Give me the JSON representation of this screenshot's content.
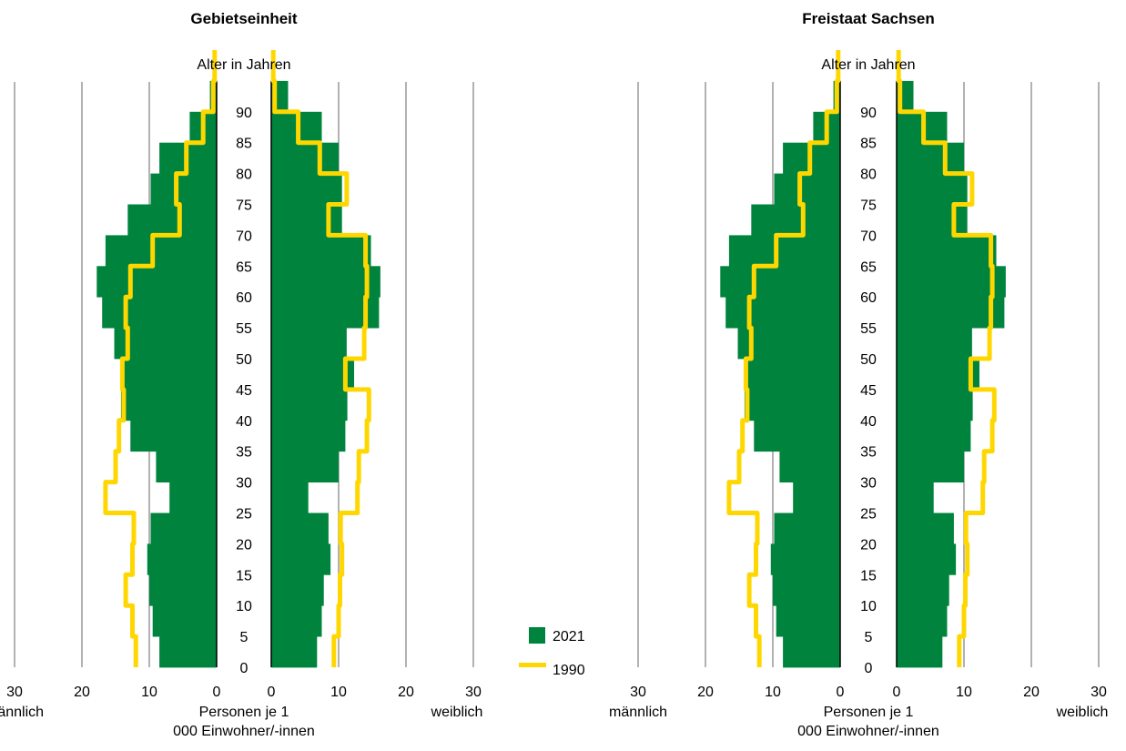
{
  "colors": {
    "bar_2021": "#00843d",
    "line_1990": "#ffd700",
    "grid": "#999999",
    "axis": "#000000"
  },
  "legend": {
    "items": [
      "2021",
      "1990"
    ]
  },
  "chart_data": [
    {
      "type": "population-pyramid",
      "title": "Gebietseinheit",
      "y_label": "Alter in Jahren",
      "x_label": "Personen je 1 000 Einwohner/-innen",
      "left_label": "männlich",
      "right_label": "weiblich",
      "x_ticks_left": [
        "30",
        "20",
        "10",
        "0"
      ],
      "x_ticks_right": [
        "0",
        "10",
        "20",
        "30"
      ],
      "y_ticks": [
        "0",
        "5",
        "10",
        "15",
        "20",
        "25",
        "30",
        "35",
        "40",
        "45",
        "50",
        "55",
        "60",
        "65",
        "70",
        "75",
        "80",
        "85",
        "90"
      ],
      "xlim": [
        0,
        30
      ],
      "age_groups": [
        "0",
        "5",
        "10",
        "15",
        "20",
        "25",
        "30",
        "35",
        "40",
        "45",
        "50",
        "55",
        "60",
        "65",
        "70",
        "75",
        "80",
        "85",
        "90",
        "95"
      ],
      "series": [
        {
          "name": "2021",
          "male": [
            8.5,
            9.5,
            10,
            10.3,
            9.8,
            7,
            9,
            12.8,
            14.2,
            13.8,
            15.2,
            17,
            17.8,
            16.5,
            13.2,
            9.8,
            8.5,
            4,
            1,
            0.5
          ],
          "female": [
            6.8,
            7.5,
            7.8,
            8.8,
            8.5,
            5.5,
            10,
            11,
            11.3,
            12.3,
            11.2,
            16,
            16.2,
            14.8,
            10.5,
            10.5,
            10,
            7.5,
            2.5,
            0.5
          ]
        },
        {
          "name": "1990",
          "male": [
            12,
            12.5,
            13.5,
            12.5,
            12.3,
            16.5,
            15,
            14.5,
            13.8,
            14,
            13.2,
            13.5,
            12.8,
            9.5,
            5.5,
            6,
            4.5,
            2,
            0.5,
            0.3
          ],
          "female": [
            9.3,
            10,
            10.2,
            10.5,
            10.3,
            12.8,
            13,
            14.2,
            14.5,
            11,
            13.8,
            14,
            14.2,
            14,
            8.5,
            11.2,
            7.2,
            4,
            0.5,
            0.3
          ]
        }
      ]
    },
    {
      "type": "population-pyramid",
      "title": "Freistaat Sachsen",
      "y_label": "Alter in Jahren",
      "x_label": "Personen je 1 000 Einwohner/-innen",
      "left_label": "männlich",
      "right_label": "weiblich",
      "x_ticks_left": [
        "30",
        "20",
        "10",
        "0"
      ],
      "x_ticks_right": [
        "0",
        "10",
        "20",
        "30"
      ],
      "y_ticks": [
        "0",
        "5",
        "10",
        "15",
        "20",
        "25",
        "30",
        "35",
        "40",
        "45",
        "50",
        "55",
        "60",
        "65",
        "70",
        "75",
        "80",
        "85",
        "90"
      ],
      "xlim": [
        0,
        30
      ],
      "age_groups": [
        "0",
        "5",
        "10",
        "15",
        "20",
        "25",
        "30",
        "35",
        "40",
        "45",
        "50",
        "55",
        "60",
        "65",
        "70",
        "75",
        "80",
        "85",
        "90",
        "95"
      ],
      "series": [
        {
          "name": "2021",
          "male": [
            8.5,
            9.5,
            10,
            10.3,
            9.8,
            7,
            9,
            12.8,
            14.2,
            13.8,
            15.2,
            17,
            17.8,
            16.5,
            13.2,
            9.8,
            8.5,
            4,
            1,
            0.5
          ],
          "female": [
            6.8,
            7.5,
            7.8,
            8.8,
            8.5,
            5.5,
            10,
            11,
            11.3,
            12.3,
            11.2,
            16,
            16.2,
            14.8,
            10.5,
            10.5,
            10,
            7.5,
            2.5,
            0.5
          ]
        },
        {
          "name": "1990",
          "male": [
            12,
            12.5,
            13.5,
            12.5,
            12.3,
            16.5,
            15,
            14.5,
            13.8,
            14,
            13.2,
            13.5,
            12.8,
            9.5,
            5.5,
            6,
            4.5,
            2,
            0.5,
            0.3
          ],
          "female": [
            9.3,
            10,
            10.2,
            10.5,
            10.3,
            12.8,
            13,
            14.2,
            14.5,
            11,
            13.8,
            14,
            14.2,
            14,
            8.5,
            11.2,
            7.2,
            4,
            0.5,
            0.3
          ]
        }
      ]
    }
  ]
}
